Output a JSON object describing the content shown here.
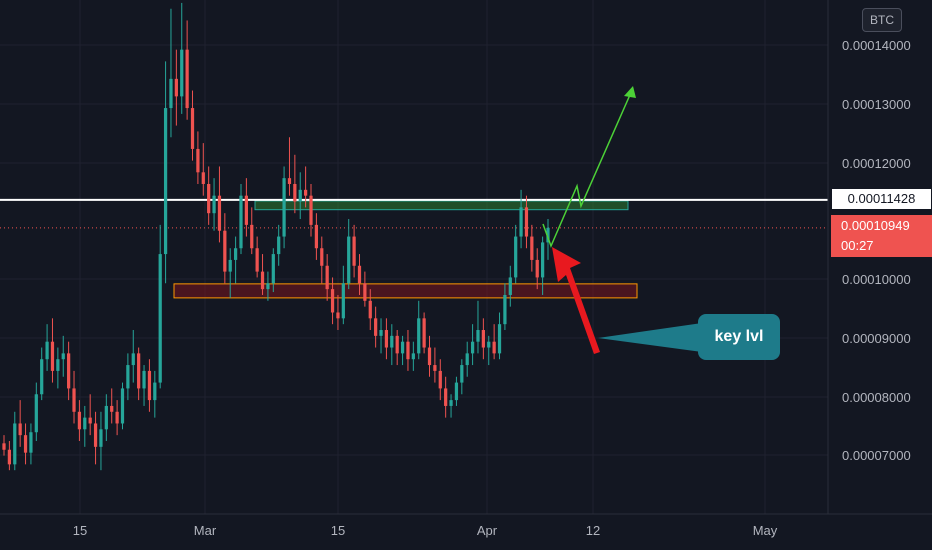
{
  "chart_data": {
    "type": "candlestick",
    "symbol_badge": "BTC",
    "y_ticks": [
      "0.00014000",
      "0.00013000",
      "0.00012000",
      "0.00011428",
      "0.00010949",
      "0.00010000",
      "0.00009000",
      "0.00008000",
      "0.00007000"
    ],
    "x_ticks": [
      "15",
      "Mar",
      "15",
      "Apr",
      "12",
      "May"
    ],
    "ylim": [
      6.05e-05,
      0.0001485
    ],
    "reference_price": "0.00011428",
    "current_price": "0.00010949",
    "countdown": "00:27",
    "zones": [
      {
        "name": "resistance-zone",
        "y_low": 0.0001126,
        "y_high": 0.0001141,
        "color": "#26a69a"
      },
      {
        "name": "support-zone",
        "y_low": 9.75e-05,
        "y_high": 9.99e-05,
        "color": "#ff9800"
      }
    ],
    "annotation": "key lvl",
    "series": [
      {
        "values": [
          [
            7.26e-05,
            7.4e-05,
            7.05e-05,
            7.15e-05
          ],
          [
            7.15e-05,
            7.3e-05,
            6.8e-05,
            6.9e-05
          ],
          [
            6.9e-05,
            7.8e-05,
            6.8e-05,
            7.6e-05
          ],
          [
            7.6e-05,
            8e-05,
            7.2e-05,
            7.4e-05
          ],
          [
            7.4e-05,
            7.6e-05,
            6.9e-05,
            7.1e-05
          ],
          [
            7.1e-05,
            7.6e-05,
            6.9e-05,
            7.45e-05
          ],
          [
            7.45e-05,
            8.3e-05,
            7.3e-05,
            8.1e-05
          ],
          [
            8.1e-05,
            8.9e-05,
            8e-05,
            8.7e-05
          ],
          [
            8.7e-05,
            9.3e-05,
            8.5e-05,
            9e-05
          ],
          [
            9e-05,
            9.4e-05,
            8.3e-05,
            8.5e-05
          ],
          [
            8.5e-05,
            8.9e-05,
            8.2e-05,
            8.7e-05
          ],
          [
            8.7e-05,
            9.1e-05,
            8.4e-05,
            8.8e-05
          ],
          [
            8.8e-05,
            9e-05,
            8e-05,
            8.2e-05
          ],
          [
            8.2e-05,
            8.5e-05,
            7.6e-05,
            7.8e-05
          ],
          [
            7.8e-05,
            8e-05,
            7.3e-05,
            7.5e-05
          ],
          [
            7.5e-05,
            7.9e-05,
            7.2e-05,
            7.7e-05
          ],
          [
            7.7e-05,
            8.1e-05,
            7.4e-05,
            7.6e-05
          ],
          [
            7.6e-05,
            7.8e-05,
            6.9e-05,
            7.2e-05
          ],
          [
            7.2e-05,
            7.8e-05,
            6.8e-05,
            7.5e-05
          ],
          [
            7.5e-05,
            8.1e-05,
            7.3e-05,
            7.9e-05
          ],
          [
            7.9e-05,
            8.2e-05,
            7.6e-05,
            7.8e-05
          ],
          [
            7.8e-05,
            8e-05,
            7.4e-05,
            7.6e-05
          ],
          [
            7.6e-05,
            8.3e-05,
            7.5e-05,
            8.2e-05
          ],
          [
            8.2e-05,
            8.8e-05,
            8e-05,
            8.6e-05
          ],
          [
            8.6e-05,
            9.2e-05,
            8.3e-05,
            8.8e-05
          ],
          [
            8.8e-05,
            8.9e-05,
            8e-05,
            8.2e-05
          ],
          [
            8.2e-05,
            8.6e-05,
            7.9e-05,
            8.5e-05
          ],
          [
            8.5e-05,
            8.7e-05,
            7.8e-05,
            8e-05
          ],
          [
            8e-05,
            8.5e-05,
            7.7e-05,
            8.3e-05
          ],
          [
            8.3e-05,
            0.00011,
            8.2e-05,
            0.000105
          ],
          [
            0.000105,
            0.000138,
            0.0001,
            0.00013
          ],
          [
            0.00013,
            0.000147,
            0.000125,
            0.000135
          ],
          [
            0.000135,
            0.00014,
            0.000127,
            0.000132
          ],
          [
            0.000132,
            0.000148,
            0.000129,
            0.00014
          ],
          [
            0.00014,
            0.000145,
            0.000128,
            0.00013
          ],
          [
            0.00013,
            0.000133,
            0.000121,
            0.000123
          ],
          [
            0.000123,
            0.000126,
            0.000117,
            0.000119
          ],
          [
            0.000119,
            0.000124,
            0.000115,
            0.000117
          ],
          [
            0.000117,
            0.00012,
            0.00011,
            0.000112
          ],
          [
            0.000112,
            0.000118,
            0.000109,
            0.000115
          ],
          [
            0.000115,
            0.00012,
            0.000107,
            0.000109
          ],
          [
            0.000109,
            0.000112,
            0.0001,
            0.000102
          ],
          [
            0.000102,
            0.000106,
            9.75e-05,
            0.000104
          ],
          [
            0.000104,
            0.000108,
            0.0001,
            0.000106
          ],
          [
            0.000106,
            0.000117,
            0.000105,
            0.000115
          ],
          [
            0.000115,
            0.000118,
            0.000108,
            0.00011
          ],
          [
            0.00011,
            0.000113,
            0.000105,
            0.000106
          ],
          [
            0.000106,
            0.000108,
            0.000101,
            0.000102
          ],
          [
            0.000102,
            0.000105,
            9.8e-05,
            9.9e-05
          ],
          [
            9.9e-05,
            0.000102,
            9.7e-05,
            0.0001
          ],
          [
            0.0001,
            0.000106,
            9.85e-05,
            0.000105
          ],
          [
            0.000105,
            0.00011,
            0.000103,
            0.000108
          ],
          [
            0.000108,
            0.00012,
            0.000106,
            0.000118
          ],
          [
            0.000118,
            0.000125,
            0.000115,
            0.000117
          ],
          [
            0.000117,
            0.000122,
            0.000112,
            0.000114
          ],
          [
            0.000114,
            0.000119,
            0.000111,
            0.000116
          ],
          [
            0.000116,
            0.00012,
            0.000113,
            0.000115
          ],
          [
            0.000115,
            0.000117,
            0.000108,
            0.00011
          ],
          [
            0.00011,
            0.000112,
            0.000104,
            0.000106
          ],
          [
            0.000106,
            0.000108,
            0.0001,
            0.000103
          ],
          [
            0.000103,
            0.000105,
            9.7e-05,
            9.9e-05
          ],
          [
            9.9e-05,
            0.000101,
            9.3e-05,
            9.5e-05
          ],
          [
            9.5e-05,
            9.8e-05,
            9.2e-05,
            9.4e-05
          ],
          [
            9.4e-05,
            0.000103,
            9.3e-05,
            0.0001
          ],
          [
            0.0001,
            0.000111,
            9.9e-05,
            0.000108
          ],
          [
            0.000108,
            0.00011,
            0.000101,
            0.000103
          ],
          [
            0.000103,
            0.000105,
            9.8e-05,
            0.0001
          ],
          [
            0.0001,
            0.000102,
            9.6e-05,
            9.7e-05
          ],
          [
            9.7e-05,
            9.9e-05,
            9.2e-05,
            9.4e-05
          ],
          [
            9.4e-05,
            9.6e-05,
            8.9e-05,
            9.1e-05
          ],
          [
            9.1e-05,
            9.4e-05,
            8.8e-05,
            9.2e-05
          ],
          [
            9.2e-05,
            9.4e-05,
            8.7e-05,
            8.9e-05
          ],
          [
            8.9e-05,
            9.3e-05,
            8.6e-05,
            9.1e-05
          ],
          [
            9.1e-05,
            9.2e-05,
            8.6e-05,
            8.8e-05
          ],
          [
            8.8e-05,
            9.1e-05,
            8.6e-05,
            9e-05
          ],
          [
            9e-05,
            9.2e-05,
            8.5e-05,
            8.7e-05
          ],
          [
            8.7e-05,
            9e-05,
            8.5e-05,
            8.8e-05
          ],
          [
            8.8e-05,
            9.7e-05,
            8.7e-05,
            9.4e-05
          ],
          [
            9.4e-05,
            9.5e-05,
            8.8e-05,
            8.9e-05
          ],
          [
            8.9e-05,
            9.1e-05,
            8.4e-05,
            8.6e-05
          ],
          [
            8.6e-05,
            8.9e-05,
            8.3e-05,
            8.5e-05
          ],
          [
            8.5e-05,
            8.7e-05,
            8e-05,
            8.2e-05
          ],
          [
            8.2e-05,
            8.4e-05,
            7.7e-05,
            7.9e-05
          ],
          [
            7.9e-05,
            8.1e-05,
            7.7e-05,
            8e-05
          ],
          [
            8e-05,
            8.4e-05,
            7.9e-05,
            8.3e-05
          ],
          [
            8.3e-05,
            8.7e-05,
            8.1e-05,
            8.6e-05
          ],
          [
            8.6e-05,
            9e-05,
            8.4e-05,
            8.8e-05
          ],
          [
            8.8e-05,
            9.3e-05,
            8.6e-05,
            9e-05
          ],
          [
            9e-05,
            9.7e-05,
            8.8e-05,
            9.2e-05
          ],
          [
            9.2e-05,
            9.4e-05,
            8.7e-05,
            8.9e-05
          ],
          [
            8.9e-05,
            9.1e-05,
            8.6e-05,
            9e-05
          ],
          [
            9e-05,
            9.3e-05,
            8.7e-05,
            8.8e-05
          ],
          [
            8.8e-05,
            9.5e-05,
            8.7e-05,
            9.3e-05
          ],
          [
            9.3e-05,
            0.0001,
            9.2e-05,
            9.8e-05
          ],
          [
            9.8e-05,
            0.000103,
            9.6e-05,
            0.000101
          ],
          [
            0.000101,
            0.00011,
            0.0001,
            0.000108
          ],
          [
            0.000108,
            0.000116,
            0.000106,
            0.000113
          ],
          [
            0.000113,
            0.000115,
            0.000106,
            0.000108
          ],
          [
            0.000108,
            0.00011,
            0.000102,
            0.000104
          ],
          [
            0.000104,
            0.000106,
            9.9e-05,
            0.000101
          ],
          [
            0.000101,
            0.000108,
            9.8e-05,
            0.000107
          ],
          [
            0.000107,
            0.000111,
            0.000104,
            0.0001095
          ]
        ]
      }
    ]
  },
  "colors": {
    "background": "#131722",
    "up": "#26a69a",
    "down": "#ef5350",
    "grid": "#1f2230",
    "axis_text": "#b2b5be",
    "reference_line": "#ffffff",
    "forecast": "#4cd137",
    "arrow": "#e8191f",
    "callout": "#1e7b8a"
  }
}
